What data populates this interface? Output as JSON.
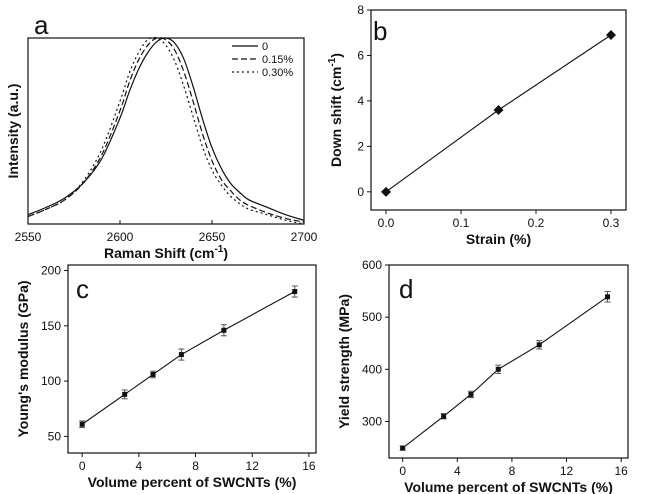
{
  "chart_data": [
    {
      "panel": "a",
      "type": "line",
      "xlabel": "Raman Shift (cm",
      "xlabel_sup": "-1",
      "xlabel_end": ")",
      "ylabel": "Intensity (a.u.)",
      "xlim": [
        2550,
        2700
      ],
      "ylim": [
        0,
        1
      ],
      "xticks": [
        "2550",
        "2600",
        "2650",
        "2700"
      ],
      "legend_position": "top-right",
      "series": [
        {
          "name": "0",
          "dash": "solid",
          "x": [
            2550,
            2560,
            2570,
            2580,
            2590,
            2600,
            2605,
            2610,
            2615,
            2620,
            2625,
            2630,
            2635,
            2640,
            2645,
            2650,
            2655,
            2660,
            2665,
            2670,
            2680,
            2690,
            2700
          ],
          "y": [
            0.05,
            0.09,
            0.14,
            0.22,
            0.35,
            0.57,
            0.71,
            0.83,
            0.92,
            0.98,
            1.0,
            0.97,
            0.88,
            0.73,
            0.56,
            0.41,
            0.3,
            0.22,
            0.17,
            0.13,
            0.09,
            0.05,
            0.02
          ]
        },
        {
          "name": "0.15%",
          "dash": "dashed",
          "x": [
            2550,
            2560,
            2570,
            2580,
            2590,
            2600,
            2605,
            2610,
            2615,
            2620,
            2625,
            2630,
            2635,
            2640,
            2645,
            2650,
            2655,
            2660,
            2665,
            2670,
            2680,
            2690,
            2700
          ],
          "y": [
            0.04,
            0.08,
            0.13,
            0.22,
            0.37,
            0.61,
            0.76,
            0.88,
            0.96,
            1.0,
            0.99,
            0.93,
            0.81,
            0.65,
            0.48,
            0.34,
            0.24,
            0.18,
            0.13,
            0.1,
            0.06,
            0.03,
            0.01
          ]
        },
        {
          "name": "0.30%",
          "dash": "dotted",
          "x": [
            2550,
            2560,
            2570,
            2580,
            2590,
            2600,
            2605,
            2610,
            2615,
            2620,
            2625,
            2630,
            2635,
            2640,
            2645,
            2650,
            2655,
            2660,
            2665,
            2670,
            2680,
            2690,
            2700
          ],
          "y": [
            0.04,
            0.08,
            0.13,
            0.23,
            0.4,
            0.66,
            0.81,
            0.92,
            0.99,
            1.0,
            0.96,
            0.87,
            0.73,
            0.57,
            0.41,
            0.29,
            0.21,
            0.15,
            0.11,
            0.08,
            0.05,
            0.02,
            0.0
          ]
        }
      ]
    },
    {
      "panel": "b",
      "type": "scatter",
      "xlabel": "Strain (%)",
      "ylabel": "Down shift (cm",
      "ylabel_sup": "-1",
      "ylabel_end": ")",
      "xlim": [
        -0.02,
        0.32
      ],
      "ylim": [
        -0.8,
        8
      ],
      "xticks": [
        0.0,
        0.1,
        0.2,
        0.3
      ],
      "xtick_labels": [
        "0.0",
        "0.1",
        "0.2",
        "0.3"
      ],
      "yticks": [
        0,
        2,
        4,
        6,
        8
      ],
      "ytick_labels": [
        "0",
        "2",
        "4",
        "6",
        "8"
      ],
      "marker": "diamond",
      "x": [
        0.0,
        0.15,
        0.3
      ],
      "y": [
        0.0,
        3.6,
        6.9
      ]
    },
    {
      "panel": "c",
      "type": "line",
      "xlabel": "Volume percent of SWCNTs (%)",
      "ylabel": "Young's modulus  (GPa)",
      "xlim": [
        -1,
        16.5
      ],
      "ylim": [
        35,
        205
      ],
      "xticks": [
        0,
        4,
        8,
        12,
        16
      ],
      "xtick_labels": [
        "0",
        "4",
        "8",
        "12",
        "16"
      ],
      "yticks": [
        50,
        100,
        150,
        200
      ],
      "ytick_labels": [
        "50",
        "100",
        "150",
        "200"
      ],
      "marker": "square",
      "x": [
        0,
        3,
        5,
        7,
        10,
        15
      ],
      "y": [
        61,
        88,
        106,
        124,
        146,
        181
      ],
      "error": [
        3,
        4,
        3,
        5,
        5,
        5
      ]
    },
    {
      "panel": "d",
      "type": "line",
      "xlabel": "Volume percent of SWCNTs (%)",
      "ylabel": "Yield strength (MPa)",
      "xlim": [
        -1,
        16.5
      ],
      "ylim": [
        230,
        600
      ],
      "xticks": [
        0,
        4,
        8,
        12,
        16
      ],
      "xtick_labels": [
        "0",
        "4",
        "8",
        "12",
        "16"
      ],
      "yticks": [
        300,
        400,
        500,
        600
      ],
      "ytick_labels": [
        "300",
        "400",
        "500",
        "600"
      ],
      "marker": "square",
      "x": [
        0,
        3,
        5,
        7,
        10,
        15
      ],
      "y": [
        249,
        310,
        352,
        400,
        447,
        539
      ],
      "error": [
        4,
        5,
        6,
        8,
        8,
        10
      ]
    }
  ]
}
